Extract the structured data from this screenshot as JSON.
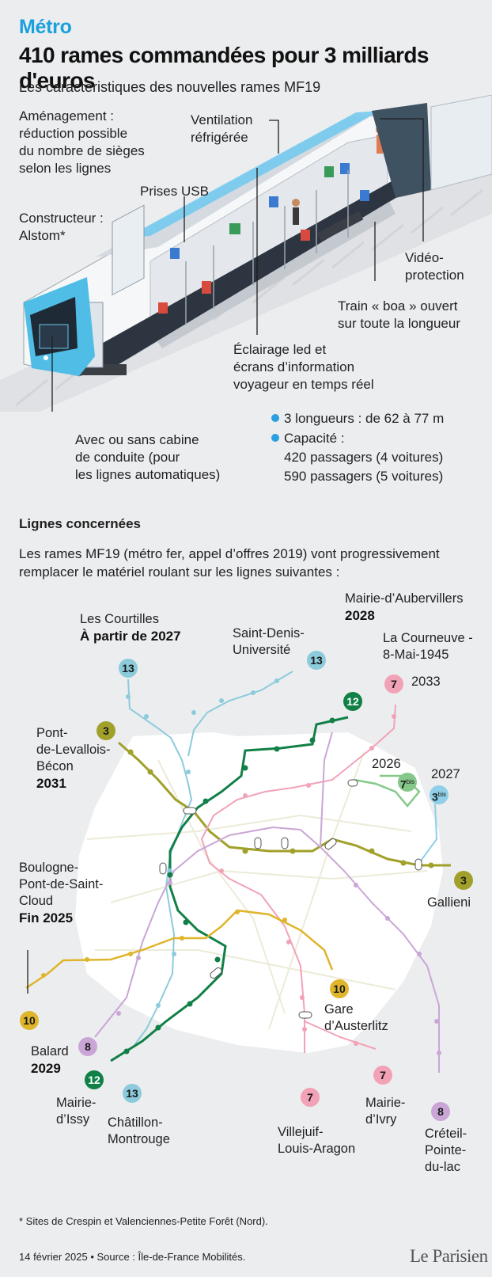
{
  "header": {
    "kicker": "Métro",
    "title": "410 rames commandées pour 3 milliards d'euros",
    "subtitle": "Les caractéristiques des nouvelles rames MF19"
  },
  "features": {
    "amenagement": [
      "Aménagement :",
      "réduction possible",
      "du nombre de sièges",
      "selon les lignes"
    ],
    "ventilation": [
      "Ventilation",
      "réfrigérée"
    ],
    "usb": "Prises USB",
    "constructeur": [
      "Constructeur :",
      "Alstom*"
    ],
    "video": [
      "Vidéo-",
      "protection"
    ],
    "boa": [
      "Train « boa » ouvert",
      "sur toute la longueur"
    ],
    "eclairage": [
      "Éclairage led et",
      "écrans d’information",
      "voyageur en temps réel"
    ],
    "cabine": [
      "Avec ou sans cabine",
      "de conduite (pour",
      "les lignes automatiques)"
    ]
  },
  "specs": {
    "longueurs": "3 longueurs : de 62 à 77 m",
    "capacite": "Capacité :",
    "cap4": "420 passagers (4 voitures)",
    "cap5": "590 passagers (5 voitures)"
  },
  "lines_section": {
    "title": "Lignes concernées",
    "intro_1": "Les rames MF19 (métro fer, appel d’offres 2019) vont progressivement",
    "intro_2": "remplacer le matériel roulant sur les lignes suivantes :"
  },
  "colors": {
    "l3": "#a0a02a",
    "l3bis": "#8fd0e8",
    "l7": "#f2a2b6",
    "l7bis": "#86c88a",
    "l8": "#caa6d6",
    "l10": "#dfb52b",
    "l12": "#118047",
    "l13": "#8ccbdb",
    "accent": "#1aa0dd"
  },
  "stations": {
    "courtilles": {
      "name": [
        "Les Courtilles"
      ],
      "year": "À partir de 2027",
      "line": "13"
    },
    "saintdenis": {
      "name": [
        "Saint-Denis-",
        "Université"
      ],
      "line": "13"
    },
    "aubervilliers": {
      "name": [
        "Mairie-d’Aubervillers"
      ],
      "year": "2028",
      "line": "12"
    },
    "courneuve": {
      "name": [
        "La Courneuve -",
        "8-Mai-1945"
      ],
      "year": "2033",
      "line": "7"
    },
    "levallois": {
      "name": [
        "Pont-",
        "de-Levallois-",
        "Bécon"
      ],
      "year": "2031",
      "line": "3"
    },
    "l7bis": {
      "year": "2026",
      "line": "7",
      "sup": "bis"
    },
    "l3bis": {
      "year": "2027",
      "line": "3",
      "sup": "bis"
    },
    "gallieni": {
      "name": [
        "Gallieni"
      ],
      "line": "3"
    },
    "boulogne": {
      "name": [
        "Boulogne-",
        "Pont-de-Saint-",
        "Cloud"
      ],
      "year": "Fin 2025",
      "line": "10"
    },
    "austerlitz": {
      "name": [
        "Gare",
        "d’Austerlitz"
      ],
      "line": "10"
    },
    "balard": {
      "name": [
        "Balard"
      ],
      "year": "2029",
      "line": "8"
    },
    "issy": {
      "name": [
        "Mairie-",
        "d’Issy"
      ],
      "line": "12"
    },
    "chatillon": {
      "name": [
        "Châtillon-",
        "Montrouge"
      ],
      "line": "13"
    },
    "villejuif": {
      "name": [
        "Villejuif-",
        "Louis-Aragon"
      ],
      "line": "7"
    },
    "ivry": {
      "name": [
        "Mairie-",
        "d’Ivry"
      ],
      "line": "7"
    },
    "creteil": {
      "name": [
        "Créteil-",
        "Pointe-",
        "du-lac"
      ],
      "line": "8"
    }
  },
  "footnote": "* Sites de Crespin et Valenciennes-Petite Forêt (Nord).",
  "source": "14 février 2025 • Source : Île-de-France Mobilités.",
  "logo": "Le Parisien"
}
